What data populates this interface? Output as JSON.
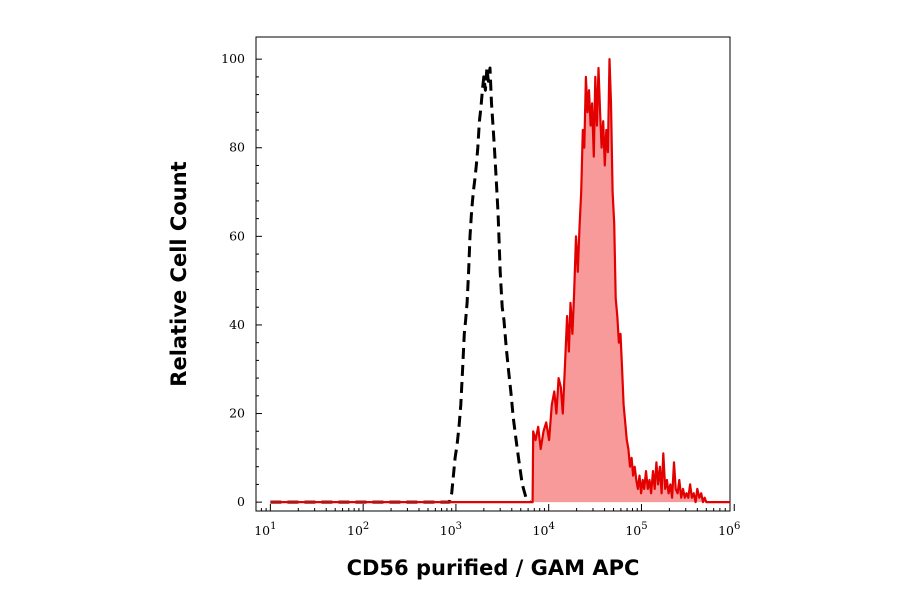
{
  "chart_data": {
    "type": "area",
    "title": "",
    "xlabel": "CD56 purified / GAM APC",
    "ylabel": "Relative Cell Count",
    "x_scale": "log",
    "xlim": [
      7,
      900000
    ],
    "ylim": [
      -2,
      105
    ],
    "x_ticks": [
      10,
      100,
      1000,
      10000,
      100000,
      1000000
    ],
    "x_tick_labels": [
      {
        "base": "10",
        "exp": "1"
      },
      {
        "base": "10",
        "exp": "2"
      },
      {
        "base": "10",
        "exp": "3"
      },
      {
        "base": "10",
        "exp": "4"
      },
      {
        "base": "10",
        "exp": "5"
      },
      {
        "base": "10",
        "exp": "6"
      }
    ],
    "y_ticks": [
      0,
      20,
      40,
      60,
      80,
      100
    ],
    "y_tick_labels": [
      "0",
      "20",
      "40",
      "60",
      "80",
      "100"
    ],
    "grid": false,
    "legend": "none",
    "series": [
      {
        "style": "dashed",
        "color": "#000000",
        "fill": "none",
        "points": [
          [
            10,
            0
          ],
          [
            100,
            0
          ],
          [
            850,
            0
          ],
          [
            900,
            2
          ],
          [
            940,
            6
          ],
          [
            980,
            10
          ],
          [
            1030,
            13
          ],
          [
            1080,
            17
          ],
          [
            1130,
            22
          ],
          [
            1180,
            30
          ],
          [
            1230,
            38
          ],
          [
            1270,
            41
          ],
          [
            1320,
            45
          ],
          [
            1370,
            52
          ],
          [
            1420,
            60
          ],
          [
            1480,
            66
          ],
          [
            1540,
            70
          ],
          [
            1600,
            73
          ],
          [
            1660,
            76
          ],
          [
            1720,
            80
          ],
          [
            1790,
            86
          ],
          [
            1860,
            89
          ],
          [
            1930,
            93
          ],
          [
            2000,
            96
          ],
          [
            2080,
            93
          ],
          [
            2160,
            98
          ],
          [
            2240,
            95
          ],
          [
            2330,
            98
          ],
          [
            2420,
            90
          ],
          [
            2510,
            85
          ],
          [
            2600,
            80
          ],
          [
            2720,
            73
          ],
          [
            2850,
            65
          ],
          [
            3000,
            52
          ],
          [
            3150,
            44
          ],
          [
            3300,
            41
          ],
          [
            3480,
            35
          ],
          [
            3680,
            30
          ],
          [
            3900,
            25
          ],
          [
            4150,
            19
          ],
          [
            4450,
            14
          ],
          [
            4800,
            9
          ],
          [
            5200,
            4
          ],
          [
            5700,
            1
          ],
          [
            6300,
            0
          ]
        ]
      },
      {
        "style": "solid",
        "color": "#e30000",
        "fill": "#f99a9a",
        "points": [
          [
            10,
            0
          ],
          [
            1000,
            0
          ],
          [
            6700,
            0
          ],
          [
            6800,
            16
          ],
          [
            7200,
            14
          ],
          [
            7700,
            17
          ],
          [
            8200,
            12
          ],
          [
            8800,
            16
          ],
          [
            9400,
            18
          ],
          [
            10100,
            14
          ],
          [
            10800,
            22
          ],
          [
            11500,
            25
          ],
          [
            12100,
            20
          ],
          [
            12800,
            28
          ],
          [
            13500,
            26
          ],
          [
            14200,
            20
          ],
          [
            15000,
            31
          ],
          [
            15800,
            42
          ],
          [
            16500,
            34
          ],
          [
            17200,
            45
          ],
          [
            18000,
            38
          ],
          [
            18800,
            47
          ],
          [
            19700,
            60
          ],
          [
            20600,
            52
          ],
          [
            21500,
            62
          ],
          [
            22400,
            70
          ],
          [
            23300,
            84
          ],
          [
            24200,
            80
          ],
          [
            25200,
            96
          ],
          [
            26200,
            88
          ],
          [
            27200,
            93
          ],
          [
            28300,
            85
          ],
          [
            29400,
            90
          ],
          [
            30600,
            78
          ],
          [
            31800,
            96
          ],
          [
            33100,
            85
          ],
          [
            34400,
            98
          ],
          [
            35800,
            88
          ],
          [
            37200,
            80
          ],
          [
            38700,
            86
          ],
          [
            40200,
            76
          ],
          [
            41800,
            84
          ],
          [
            43500,
            79
          ],
          [
            45200,
            100
          ],
          [
            47000,
            90
          ],
          [
            48900,
            70
          ],
          [
            50800,
            63
          ],
          [
            52800,
            46
          ],
          [
            54900,
            42
          ],
          [
            57100,
            36
          ],
          [
            59400,
            38
          ],
          [
            61800,
            30
          ],
          [
            64200,
            22
          ],
          [
            66800,
            18
          ],
          [
            69500,
            14
          ],
          [
            72300,
            12
          ],
          [
            75200,
            8
          ],
          [
            78200,
            10
          ],
          [
            81300,
            6
          ],
          [
            84600,
            8
          ],
          [
            88000,
            5
          ],
          [
            91500,
            3
          ],
          [
            95200,
            6
          ],
          [
            99000,
            2
          ],
          [
            103000,
            5
          ],
          [
            107000,
            3
          ],
          [
            112000,
            7
          ],
          [
            117000,
            3
          ],
          [
            122000,
            5
          ],
          [
            127000,
            2
          ],
          [
            133000,
            7
          ],
          [
            139000,
            3
          ],
          [
            145000,
            9
          ],
          [
            151000,
            4
          ],
          [
            158000,
            8
          ],
          [
            165000,
            2
          ],
          [
            172000,
            11
          ],
          [
            180000,
            3
          ],
          [
            188000,
            5
          ],
          [
            196000,
            2
          ],
          [
            205000,
            4
          ],
          [
            214000,
            1
          ],
          [
            224000,
            9
          ],
          [
            234000,
            3
          ],
          [
            245000,
            2
          ],
          [
            256000,
            5
          ],
          [
            268000,
            1
          ],
          [
            280000,
            3
          ],
          [
            293000,
            1
          ],
          [
            306000,
            2
          ],
          [
            320000,
            1
          ],
          [
            334000,
            4
          ],
          [
            350000,
            1
          ],
          [
            366000,
            2
          ],
          [
            383000,
            0
          ],
          [
            400000,
            3
          ],
          [
            420000,
            1
          ],
          [
            440000,
            2
          ],
          [
            460000,
            0
          ],
          [
            480000,
            1
          ],
          [
            500000,
            0
          ],
          [
            900000,
            0
          ]
        ]
      }
    ]
  }
}
